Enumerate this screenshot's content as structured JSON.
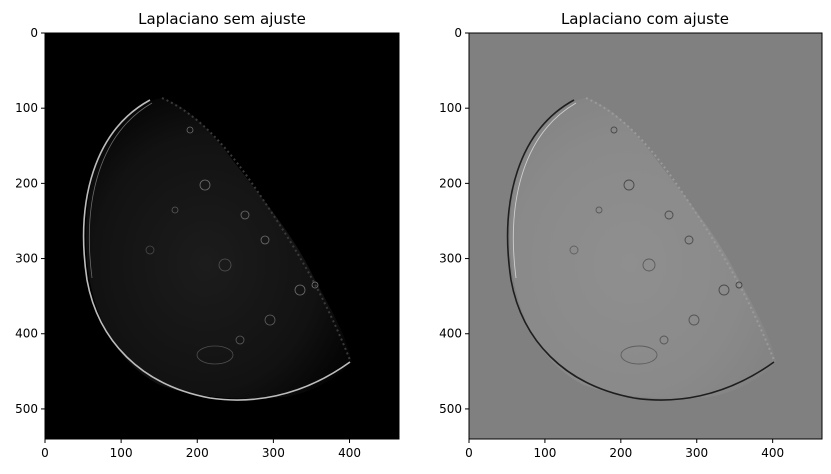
{
  "panels": [
    {
      "title": "Laplaciano sem ajuste",
      "background": "#000000",
      "xticks": [
        "0",
        "100",
        "200",
        "300",
        "400"
      ],
      "yticks": [
        "0",
        "100",
        "200",
        "300",
        "400",
        "500"
      ]
    },
    {
      "title": "Laplaciano com ajuste",
      "background": "#808080",
      "xticks": [
        "0",
        "100",
        "200",
        "300",
        "400"
      ],
      "yticks": [
        "0",
        "100",
        "200",
        "300",
        "400",
        "500"
      ]
    }
  ],
  "image_extent": {
    "width": 465,
    "height": 540
  }
}
